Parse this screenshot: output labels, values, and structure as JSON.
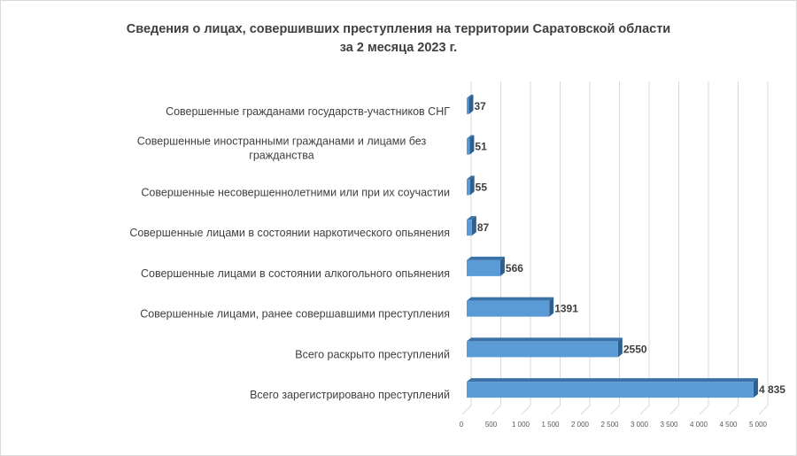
{
  "chart_data": {
    "type": "bar",
    "orientation": "horizontal",
    "title": "Сведения о лицах, совершивших преступления на территории Саратовской области",
    "subtitle": "за 2 месяца 2023 г.",
    "categories": [
      "Совершенные гражданами государств-участников СНГ",
      "Совершенные иностранными гражданами и лицами без гражданства",
      "Совершенные несовершеннолетними или при их соучастии",
      "Совершенные лицами в состоянии наркотического опьянения",
      "Совершенные лицами в состоянии алкогольного опьянения",
      "Совершенные лицами, ранее совершавшими преступления",
      "Всего раскрыто преступлений",
      "Всего зарегистрировано преступлений"
    ],
    "values": [
      37,
      51,
      55,
      87,
      566,
      1391,
      2550,
      4835
    ],
    "value_labels": [
      "37",
      "51",
      "55",
      "87",
      "566",
      "1391",
      "2550",
      "4 835"
    ],
    "xlim": [
      0,
      5000
    ],
    "xticks": [
      "0",
      "500",
      "1 000",
      "1 500",
      "2 000",
      "2 500",
      "3 000",
      "3 500",
      "4 000",
      "4 500",
      "5 000"
    ],
    "grid": true,
    "legend": "none",
    "bar_color": "#5b9bd5"
  }
}
